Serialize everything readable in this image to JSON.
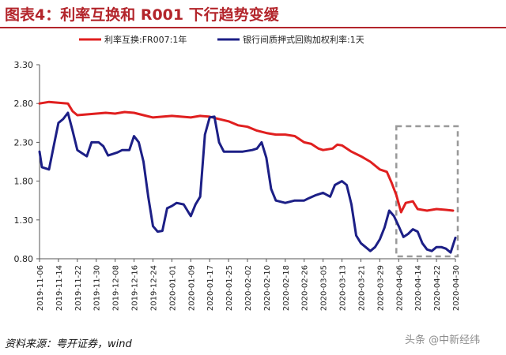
{
  "header": {
    "title": "图表4：利率互换和 R001 下行趋势变缓"
  },
  "footer": {
    "source": "资料来源：粤开证券，wind",
    "watermark": "头条 @中新经纬"
  },
  "chart_data": {
    "type": "line",
    "title": "",
    "xlabel": "",
    "ylabel": "",
    "ylim": [
      0.8,
      3.3
    ],
    "yticks": [
      "3.30",
      "2.80",
      "2.30",
      "1.80",
      "1.30",
      "0.80"
    ],
    "ytick_values": [
      3.3,
      2.8,
      2.3,
      1.8,
      1.3,
      0.8
    ],
    "x_labels": [
      "2019-11-06",
      "2019-11-14",
      "2019-11-22",
      "2019-11-30",
      "2019-12-08",
      "2019-12-16",
      "2019-12-24",
      "2020-01-01",
      "2020-01-09",
      "2020-01-17",
      "2020-01-25",
      "2020-02-02",
      "2020-02-10",
      "2020-02-18",
      "2020-02-26",
      "2020-03-05",
      "2020-03-13",
      "2020-03-21",
      "2020-03-29",
      "2020-04-06",
      "2020-04-14",
      "2020-04-22",
      "2020-04-30"
    ],
    "legend_position": "top",
    "grid": false,
    "highlight_range": [
      "2020-04-05",
      "2020-05-01"
    ],
    "series": [
      {
        "name": "利率互换:FR007:1年",
        "color": "#e01f1f",
        "points": [
          [
            "2019-11-06",
            2.8
          ],
          [
            "2019-11-10",
            2.82
          ],
          [
            "2019-11-14",
            2.81
          ],
          [
            "2019-11-18",
            2.8
          ],
          [
            "2019-11-20",
            2.7
          ],
          [
            "2019-11-22",
            2.65
          ],
          [
            "2019-11-26",
            2.66
          ],
          [
            "2019-11-30",
            2.67
          ],
          [
            "2019-12-04",
            2.68
          ],
          [
            "2019-12-08",
            2.67
          ],
          [
            "2019-12-12",
            2.69
          ],
          [
            "2019-12-16",
            2.68
          ],
          [
            "2019-12-20",
            2.65
          ],
          [
            "2019-12-24",
            2.62
          ],
          [
            "2019-12-28",
            2.63
          ],
          [
            "2020-01-01",
            2.64
          ],
          [
            "2020-01-05",
            2.63
          ],
          [
            "2020-01-09",
            2.62
          ],
          [
            "2020-01-13",
            2.64
          ],
          [
            "2020-01-17",
            2.63
          ],
          [
            "2020-01-21",
            2.6
          ],
          [
            "2020-01-25",
            2.57
          ],
          [
            "2020-01-29",
            2.52
          ],
          [
            "2020-02-02",
            2.5
          ],
          [
            "2020-02-06",
            2.45
          ],
          [
            "2020-02-10",
            2.42
          ],
          [
            "2020-02-14",
            2.4
          ],
          [
            "2020-02-18",
            2.4
          ],
          [
            "2020-02-22",
            2.38
          ],
          [
            "2020-02-26",
            2.3
          ],
          [
            "2020-02-29",
            2.28
          ],
          [
            "2020-03-03",
            2.22
          ],
          [
            "2020-03-05",
            2.2
          ],
          [
            "2020-03-09",
            2.22
          ],
          [
            "2020-03-11",
            2.27
          ],
          [
            "2020-03-13",
            2.26
          ],
          [
            "2020-03-17",
            2.18
          ],
          [
            "2020-03-21",
            2.12
          ],
          [
            "2020-03-25",
            2.05
          ],
          [
            "2020-03-29",
            1.95
          ],
          [
            "2020-04-01",
            1.92
          ],
          [
            "2020-04-03",
            1.78
          ],
          [
            "2020-04-05",
            1.62
          ],
          [
            "2020-04-07",
            1.4
          ],
          [
            "2020-04-09",
            1.52
          ],
          [
            "2020-04-12",
            1.54
          ],
          [
            "2020-04-14",
            1.44
          ],
          [
            "2020-04-18",
            1.42
          ],
          [
            "2020-04-22",
            1.44
          ],
          [
            "2020-04-26",
            1.43
          ],
          [
            "2020-04-29",
            1.42
          ]
        ]
      },
      {
        "name": "银行间质押式回购加权利率:1天",
        "color": "#1c1f86",
        "points": [
          [
            "2019-11-06",
            2.18
          ],
          [
            "2019-11-07",
            1.98
          ],
          [
            "2019-11-10",
            1.95
          ],
          [
            "2019-11-12",
            2.25
          ],
          [
            "2019-11-14",
            2.55
          ],
          [
            "2019-11-16",
            2.6
          ],
          [
            "2019-11-18",
            2.68
          ],
          [
            "2019-11-20",
            2.45
          ],
          [
            "2019-11-22",
            2.2
          ],
          [
            "2019-11-24",
            2.16
          ],
          [
            "2019-11-26",
            2.12
          ],
          [
            "2019-11-28",
            2.3
          ],
          [
            "2019-12-01",
            2.3
          ],
          [
            "2019-12-03",
            2.25
          ],
          [
            "2019-12-05",
            2.13
          ],
          [
            "2019-12-07",
            2.15
          ],
          [
            "2019-12-09",
            2.17
          ],
          [
            "2019-12-11",
            2.2
          ],
          [
            "2019-12-14",
            2.2
          ],
          [
            "2019-12-16",
            2.38
          ],
          [
            "2019-12-18",
            2.3
          ],
          [
            "2019-12-20",
            2.05
          ],
          [
            "2019-12-22",
            1.6
          ],
          [
            "2019-12-24",
            1.22
          ],
          [
            "2019-12-26",
            1.15
          ],
          [
            "2019-12-28",
            1.16
          ],
          [
            "2019-12-30",
            1.45
          ],
          [
            "2020-01-01",
            1.48
          ],
          [
            "2020-01-03",
            1.52
          ],
          [
            "2020-01-06",
            1.5
          ],
          [
            "2020-01-08",
            1.4
          ],
          [
            "2020-01-09",
            1.35
          ],
          [
            "2020-01-11",
            1.5
          ],
          [
            "2020-01-13",
            1.6
          ],
          [
            "2020-01-15",
            2.4
          ],
          [
            "2020-01-17",
            2.62
          ],
          [
            "2020-01-19",
            2.63
          ],
          [
            "2020-01-21",
            2.3
          ],
          [
            "2020-01-23",
            2.18
          ],
          [
            "2020-01-27",
            2.18
          ],
          [
            "2020-01-31",
            2.18
          ],
          [
            "2020-02-04",
            2.2
          ],
          [
            "2020-02-06",
            2.22
          ],
          [
            "2020-02-08",
            2.3
          ],
          [
            "2020-02-10",
            2.1
          ],
          [
            "2020-02-12",
            1.7
          ],
          [
            "2020-02-14",
            1.55
          ],
          [
            "2020-02-18",
            1.52
          ],
          [
            "2020-02-22",
            1.55
          ],
          [
            "2020-02-26",
            1.55
          ],
          [
            "2020-02-28",
            1.58
          ],
          [
            "2020-03-02",
            1.62
          ],
          [
            "2020-03-05",
            1.65
          ],
          [
            "2020-03-08",
            1.6
          ],
          [
            "2020-03-10",
            1.75
          ],
          [
            "2020-03-13",
            1.8
          ],
          [
            "2020-03-15",
            1.75
          ],
          [
            "2020-03-17",
            1.5
          ],
          [
            "2020-03-19",
            1.1
          ],
          [
            "2020-03-21",
            1.0
          ],
          [
            "2020-03-23",
            0.95
          ],
          [
            "2020-03-25",
            0.9
          ],
          [
            "2020-03-27",
            0.95
          ],
          [
            "2020-03-29",
            1.05
          ],
          [
            "2020-03-31",
            1.2
          ],
          [
            "2020-04-02",
            1.42
          ],
          [
            "2020-04-04",
            1.35
          ],
          [
            "2020-04-06",
            1.22
          ],
          [
            "2020-04-08",
            1.08
          ],
          [
            "2020-04-10",
            1.12
          ],
          [
            "2020-04-12",
            1.18
          ],
          [
            "2020-04-14",
            1.15
          ],
          [
            "2020-04-16",
            1.0
          ],
          [
            "2020-04-18",
            0.92
          ],
          [
            "2020-04-20",
            0.9
          ],
          [
            "2020-04-22",
            0.95
          ],
          [
            "2020-04-24",
            0.95
          ],
          [
            "2020-04-26",
            0.93
          ],
          [
            "2020-04-28",
            0.88
          ],
          [
            "2020-04-30",
            1.07
          ]
        ]
      }
    ]
  }
}
